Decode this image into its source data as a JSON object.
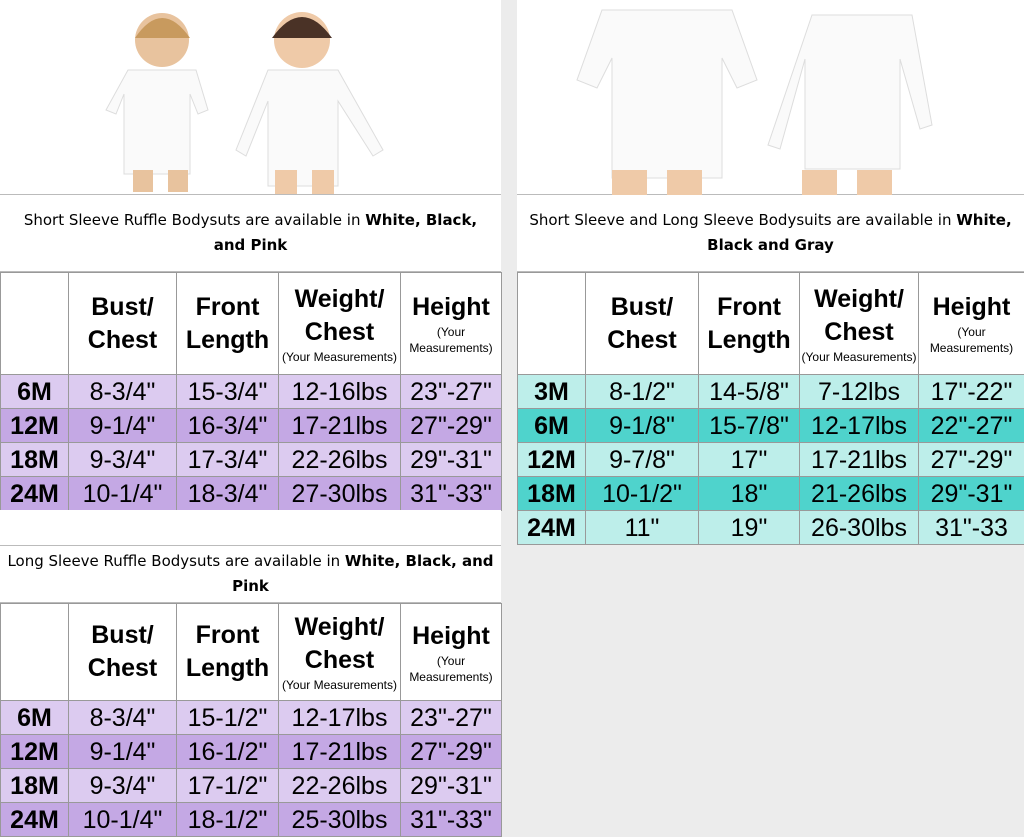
{
  "left_top": {
    "caption_prefix": "Short Sleeve Ruffle Bodysuts are available in ",
    "caption_bold": "White, Black, and Pink",
    "headers": [
      {
        "main": "",
        "sub": ""
      },
      {
        "main": "Bust/ Chest",
        "sub": ""
      },
      {
        "main": "Front Length",
        "sub": ""
      },
      {
        "main": "Weight/ Chest",
        "sub": "(Your Measurements)"
      },
      {
        "main": "Height",
        "sub": "(Your Measurements)"
      }
    ],
    "rows": [
      [
        "6M",
        "8-3/4\"",
        "15-3/4\"",
        "12-16lbs",
        "23\"-27\""
      ],
      [
        "12M",
        "9-1/4\"",
        "16-3/4\"",
        "17-21lbs",
        "27\"-29\""
      ],
      [
        "18M",
        "9-3/4\"",
        "17-3/4\"",
        "22-26lbs",
        "29\"-31\""
      ],
      [
        "24M",
        "10-1/4\"",
        "18-3/4\"",
        "27-30lbs",
        "31\"-33\""
      ]
    ]
  },
  "left_bottom": {
    "caption_prefix": "Long Sleeve Ruffle Bodysuts are available in ",
    "caption_bold": "White, Black, and Pink",
    "headers": [
      {
        "main": "",
        "sub": ""
      },
      {
        "main": "Bust/ Chest",
        "sub": ""
      },
      {
        "main": "Front Length",
        "sub": ""
      },
      {
        "main": "Weight/ Chest",
        "sub": "(Your Measurements)"
      },
      {
        "main": "Height",
        "sub": "(Your Measurements)"
      }
    ],
    "rows": [
      [
        "6M",
        "8-3/4\"",
        "15-1/2\"",
        "12-17lbs",
        "23\"-27\""
      ],
      [
        "12M",
        "9-1/4\"",
        "16-1/2\"",
        "17-21lbs",
        "27\"-29\""
      ],
      [
        "18M",
        "9-3/4\"",
        "17-1/2\"",
        "22-26lbs",
        "29\"-31\""
      ],
      [
        "24M",
        "10-1/4\"",
        "18-1/2\"",
        "25-30lbs",
        "31\"-33\""
      ]
    ]
  },
  "right": {
    "caption_prefix": "Short Sleeve and Long Sleeve Bodysuits are available in ",
    "caption_bold": "White, Black and Gray",
    "headers": [
      {
        "main": "",
        "sub": ""
      },
      {
        "main": "Bust/ Chest",
        "sub": ""
      },
      {
        "main": "Front Length",
        "sub": ""
      },
      {
        "main": "Weight/ Chest",
        "sub": "(Your Measurements)"
      },
      {
        "main": "Height",
        "sub": "(Your Measurements)"
      }
    ],
    "rows": [
      [
        "3M",
        "8-1/2\"",
        "14-5/8\"",
        "7-12lbs",
        "17\"-22\""
      ],
      [
        "6M",
        "9-1/8\"",
        "15-7/8\"",
        "12-17lbs",
        "22\"-27\""
      ],
      [
        "12M",
        "9-7/8\"",
        "17\"",
        "17-21lbs",
        "27\"-29\""
      ],
      [
        "18M",
        "10-1/2\"",
        "18\"",
        "21-26lbs",
        "29\"-31\""
      ],
      [
        "24M",
        "11\"",
        "19\"",
        "26-30lbs",
        "31\"-33"
      ]
    ]
  },
  "colors": {
    "purple_light": "#dccbf0",
    "purple_dark": "#c4a8e4",
    "teal_light": "#bdeeea",
    "teal_dark": "#4fd3cc"
  }
}
